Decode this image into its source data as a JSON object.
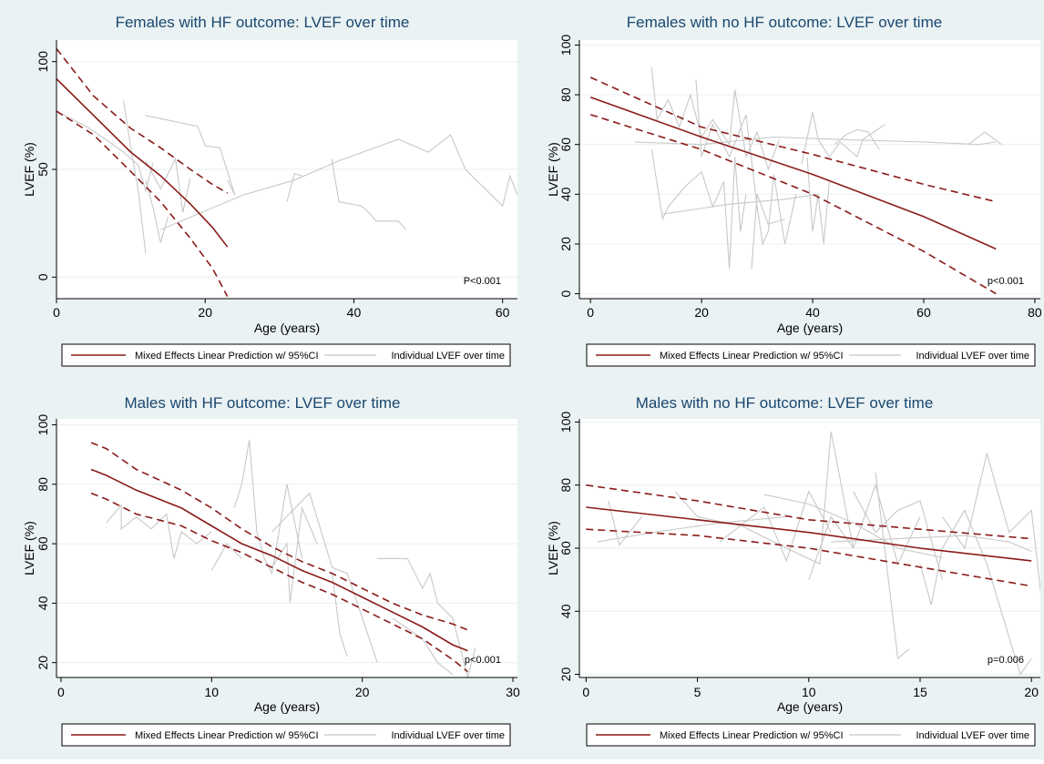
{
  "colors": {
    "background": "#eaf2f3",
    "plot_area": "#ffffff",
    "grid": "#eaf2f3",
    "prediction": "#8b1a1a",
    "individual": "#c8c8c8",
    "text": "#1a476f"
  },
  "legend": {
    "prediction_label": "Mixed Effects Linear Prediction w/ 95%CI",
    "individual_label": "Individual LVEF over time"
  },
  "chart_data": [
    {
      "type": "line",
      "title": "Females with HF outcome: LVEF over time",
      "xlabel": "Age (years)",
      "ylabel": "LVEF (%)",
      "xlim": [
        0,
        62
      ],
      "ylim": [
        -10,
        110
      ],
      "xticks": [
        0,
        20,
        40,
        60
      ],
      "yticks": [
        0,
        50,
        100
      ],
      "pvalue": "P<0.001",
      "grid": true,
      "legend": "bottom",
      "series": [
        {
          "role": "prediction",
          "x": [
            0,
            5,
            10,
            14,
            18,
            21,
            23
          ],
          "y": [
            92,
            75,
            58,
            47,
            34,
            23,
            14
          ]
        },
        {
          "role": "ci_upper",
          "x": [
            0,
            5,
            10,
            14,
            18,
            21,
            23
          ],
          "y": [
            106,
            84,
            69,
            60,
            50,
            43,
            39
          ]
        },
        {
          "role": "ci_lower",
          "x": [
            0,
            5,
            10,
            14,
            18,
            21,
            23
          ],
          "y": [
            77,
            66,
            49,
            35,
            18,
            4,
            -9
          ]
        }
      ],
      "individuals": [
        [
          [
            0,
            77
          ],
          [
            4,
            70
          ],
          [
            7,
            63
          ],
          [
            9,
            58
          ],
          [
            11,
            52
          ],
          [
            12,
            40
          ],
          [
            13,
            53
          ]
        ],
        [
          [
            9,
            82
          ],
          [
            10,
            60
          ],
          [
            11,
            40
          ],
          [
            12,
            11
          ]
        ],
        [
          [
            12,
            54
          ],
          [
            14,
            41
          ],
          [
            16,
            55
          ],
          [
            17,
            30
          ],
          [
            18,
            46
          ]
        ],
        [
          [
            12,
            45
          ],
          [
            13,
            32
          ],
          [
            14,
            16
          ],
          [
            15,
            28
          ]
        ],
        [
          [
            12,
            75
          ],
          [
            19,
            70
          ],
          [
            20,
            61
          ],
          [
            22,
            60
          ],
          [
            24,
            38
          ],
          [
            23,
            45
          ]
        ],
        [
          [
            14,
            22
          ],
          [
            25,
            38
          ],
          [
            32,
            45
          ],
          [
            38,
            54
          ],
          [
            46,
            64
          ],
          [
            50,
            58
          ],
          [
            53,
            66
          ],
          [
            55,
            50
          ],
          [
            60,
            33
          ],
          [
            61,
            47
          ],
          [
            62,
            38
          ]
        ],
        [
          [
            31,
            35
          ],
          [
            32,
            48
          ],
          [
            33,
            47
          ]
        ],
        [
          [
            37,
            55
          ],
          [
            38,
            35
          ],
          [
            41,
            33
          ],
          [
            42,
            30
          ],
          [
            43,
            26
          ],
          [
            46,
            26
          ],
          [
            47,
            22
          ]
        ]
      ]
    },
    {
      "type": "line",
      "title": "Females with no HF outcome: LVEF over time",
      "xlabel": "Age (years)",
      "ylabel": "LVEF (%)",
      "xlim": [
        -2,
        81
      ],
      "ylim": [
        -2,
        102
      ],
      "xticks": [
        0,
        20,
        40,
        60,
        80
      ],
      "yticks": [
        0,
        20,
        40,
        60,
        80,
        100
      ],
      "pvalue": "p<0.001",
      "grid": true,
      "legend": "bottom",
      "series": [
        {
          "role": "prediction",
          "x": [
            0,
            20,
            40,
            60,
            73
          ],
          "y": [
            79,
            63,
            48,
            31,
            18
          ]
        },
        {
          "role": "ci_upper",
          "x": [
            0,
            20,
            40,
            60,
            73
          ],
          "y": [
            87,
            67,
            56,
            44,
            37
          ]
        },
        {
          "role": "ci_lower",
          "x": [
            0,
            20,
            40,
            60,
            73
          ],
          "y": [
            72,
            58,
            40,
            17,
            0
          ]
        }
      ],
      "individuals": [
        [
          [
            11,
            91
          ],
          [
            12,
            70
          ],
          [
            14,
            78
          ],
          [
            16,
            67
          ],
          [
            18,
            80
          ],
          [
            20,
            63
          ],
          [
            22,
            70
          ],
          [
            25,
            60
          ],
          [
            26,
            82
          ],
          [
            28,
            55
          ],
          [
            30,
            65
          ],
          [
            32,
            50
          ],
          [
            34,
            62
          ]
        ],
        [
          [
            11,
            58
          ],
          [
            13,
            30
          ],
          [
            14,
            35
          ],
          [
            17,
            43
          ],
          [
            20,
            49
          ],
          [
            22,
            35
          ],
          [
            24,
            45
          ],
          [
            25,
            10
          ],
          [
            26,
            55
          ],
          [
            27,
            25
          ],
          [
            28,
            40
          ]
        ],
        [
          [
            19,
            86
          ],
          [
            20,
            55
          ],
          [
            22,
            68
          ],
          [
            25,
            55
          ],
          [
            28,
            72
          ],
          [
            30,
            35
          ],
          [
            31,
            20
          ],
          [
            32,
            25
          ],
          [
            33,
            48
          ],
          [
            35,
            20
          ],
          [
            37,
            40
          ]
        ],
        [
          [
            8,
            61
          ],
          [
            20,
            60
          ],
          [
            33,
            63
          ],
          [
            45,
            62
          ],
          [
            60,
            61
          ],
          [
            70,
            60
          ],
          [
            73,
            61
          ]
        ],
        [
          [
            38,
            52
          ],
          [
            40,
            73
          ],
          [
            41,
            62
          ],
          [
            43,
            55
          ],
          [
            45,
            61
          ],
          [
            48,
            55
          ],
          [
            49,
            62
          ],
          [
            51,
            65
          ],
          [
            53,
            68
          ]
        ],
        [
          [
            13,
            32
          ],
          [
            25,
            36
          ],
          [
            35,
            38
          ],
          [
            41,
            40
          ]
        ],
        [
          [
            39,
            55
          ],
          [
            40,
            25
          ],
          [
            41,
            40
          ],
          [
            42,
            20
          ],
          [
            43,
            45
          ]
        ],
        [
          [
            29,
            10
          ],
          [
            30,
            40
          ],
          [
            32,
            28
          ],
          [
            35,
            30
          ]
        ],
        [
          [
            44,
            60
          ],
          [
            46,
            64
          ],
          [
            48,
            66
          ],
          [
            50,
            65
          ],
          [
            52,
            58
          ]
        ],
        [
          [
            68,
            60
          ],
          [
            71,
            65
          ],
          [
            74,
            60
          ]
        ]
      ]
    },
    {
      "type": "line",
      "title": "Males with HF outcome: LVEF over time",
      "xlabel": "Age (years)",
      "ylabel": "LVEF (%)",
      "xlim": [
        -0.3,
        30.3
      ],
      "ylim": [
        15,
        102
      ],
      "xticks": [
        0,
        10,
        20,
        30
      ],
      "yticks": [
        20,
        40,
        60,
        80,
        100
      ],
      "pvalue": "p<0.001",
      "grid": true,
      "legend": "bottom",
      "series": [
        {
          "role": "prediction",
          "x": [
            2,
            3,
            5,
            8,
            10,
            12,
            14,
            16,
            18,
            20,
            22,
            24,
            26,
            27
          ],
          "y": [
            85,
            83,
            78,
            72,
            66,
            60,
            56,
            51,
            47,
            42,
            37,
            32,
            26,
            24
          ]
        },
        {
          "role": "ci_upper",
          "x": [
            2,
            3,
            5,
            8,
            10,
            12,
            14,
            16,
            18,
            20,
            22,
            24,
            26,
            27
          ],
          "y": [
            94,
            92,
            85,
            78,
            72,
            65,
            59,
            54,
            50,
            45,
            40,
            36,
            33,
            31
          ]
        },
        {
          "role": "ci_lower",
          "x": [
            2,
            3,
            5,
            8,
            10,
            12,
            14,
            16,
            18,
            20,
            22,
            24,
            26,
            27
          ],
          "y": [
            77,
            75,
            70,
            66,
            61,
            57,
            52,
            47,
            43,
            38,
            33,
            28,
            21,
            17
          ]
        }
      ],
      "individuals": [
        [
          [
            3,
            67
          ],
          [
            4,
            73
          ],
          [
            4,
            65
          ],
          [
            5,
            69
          ],
          [
            6,
            65
          ],
          [
            7,
            70
          ],
          [
            7.5,
            55
          ],
          [
            8,
            64
          ],
          [
            9,
            60
          ],
          [
            10,
            64
          ]
        ],
        [
          [
            10,
            51
          ],
          [
            11,
            60
          ],
          [
            12,
            55
          ]
        ],
        [
          [
            11.5,
            72
          ],
          [
            12,
            80
          ],
          [
            12.5,
            95
          ],
          [
            13,
            64
          ],
          [
            13.5,
            55
          ],
          [
            14,
            50
          ],
          [
            15,
            80
          ],
          [
            16,
            55
          ]
        ],
        [
          [
            14,
            52
          ],
          [
            15,
            60
          ],
          [
            15.2,
            40
          ],
          [
            16,
            72
          ],
          [
            17,
            60
          ]
        ],
        [
          [
            14,
            64
          ],
          [
            16.5,
            77
          ],
          [
            18,
            52
          ],
          [
            19,
            50
          ],
          [
            20,
            35
          ],
          [
            21,
            20
          ]
        ],
        [
          [
            18,
            50
          ],
          [
            18.5,
            30
          ],
          [
            19,
            22
          ]
        ],
        [
          [
            21,
            55
          ],
          [
            23,
            55
          ],
          [
            24,
            45
          ],
          [
            24.5,
            50
          ],
          [
            25,
            40
          ],
          [
            26,
            35
          ],
          [
            27,
            15
          ],
          [
            27.5,
            25
          ]
        ],
        [
          [
            22,
            35
          ],
          [
            24,
            28
          ],
          [
            25,
            20
          ],
          [
            26,
            16
          ]
        ]
      ]
    },
    {
      "type": "line",
      "title": "Males with no HF outcome: LVEF over time",
      "xlabel": "Age (years)",
      "ylabel": "LVEF (%)",
      "xlim": [
        -0.3,
        20.4
      ],
      "ylim": [
        19,
        101
      ],
      "xticks": [
        0,
        5,
        10,
        15,
        20
      ],
      "yticks": [
        20,
        40,
        60,
        80,
        100
      ],
      "pvalue": "p=0.006",
      "grid": true,
      "legend": "bottom",
      "series": [
        {
          "role": "prediction",
          "x": [
            0,
            5,
            10,
            15,
            20
          ],
          "y": [
            73,
            69,
            65,
            60,
            56
          ]
        },
        {
          "role": "ci_upper",
          "x": [
            0,
            5,
            10,
            15,
            20
          ],
          "y": [
            80,
            75,
            69,
            66,
            63
          ]
        },
        {
          "role": "ci_lower",
          "x": [
            0,
            5,
            10,
            15,
            20
          ],
          "y": [
            66,
            64,
            60,
            54,
            48
          ]
        }
      ],
      "individuals": [
        [
          [
            0.5,
            62
          ],
          [
            3,
            65
          ],
          [
            6,
            68
          ],
          [
            9,
            70
          ]
        ],
        [
          [
            1,
            75
          ],
          [
            1.5,
            61
          ],
          [
            2.5,
            70
          ]
        ],
        [
          [
            4,
            78
          ],
          [
            5,
            70
          ],
          [
            7,
            67
          ],
          [
            9,
            60
          ],
          [
            10.5,
            55
          ],
          [
            11,
            97
          ],
          [
            12,
            60
          ]
        ],
        [
          [
            6,
            62
          ],
          [
            8,
            73
          ],
          [
            9,
            56
          ],
          [
            10,
            78
          ],
          [
            11,
            65
          ]
        ],
        [
          [
            10,
            50
          ],
          [
            11,
            70
          ],
          [
            12,
            60
          ],
          [
            13,
            80
          ],
          [
            14,
            55
          ],
          [
            15,
            70
          ]
        ],
        [
          [
            8,
            77
          ],
          [
            10,
            74
          ],
          [
            12,
            68
          ],
          [
            14,
            60
          ],
          [
            16,
            57
          ]
        ],
        [
          [
            13,
            84
          ],
          [
            14,
            25
          ],
          [
            14.5,
            28
          ]
        ],
        [
          [
            15,
            55
          ],
          [
            15.5,
            42
          ],
          [
            16,
            60
          ],
          [
            17,
            72
          ],
          [
            18,
            55
          ],
          [
            19.5,
            20
          ],
          [
            20,
            25
          ]
        ],
        [
          [
            16,
            70
          ],
          [
            17,
            60
          ],
          [
            18,
            90
          ],
          [
            19,
            65
          ],
          [
            20,
            72
          ],
          [
            20.5,
            41
          ]
        ],
        [
          [
            11,
            62
          ],
          [
            14,
            63
          ],
          [
            17,
            64
          ],
          [
            19,
            62
          ],
          [
            20,
            59
          ]
        ],
        [
          [
            12,
            78
          ],
          [
            13,
            65
          ],
          [
            14,
            72
          ],
          [
            15,
            75
          ],
          [
            16,
            50
          ]
        ]
      ]
    }
  ]
}
